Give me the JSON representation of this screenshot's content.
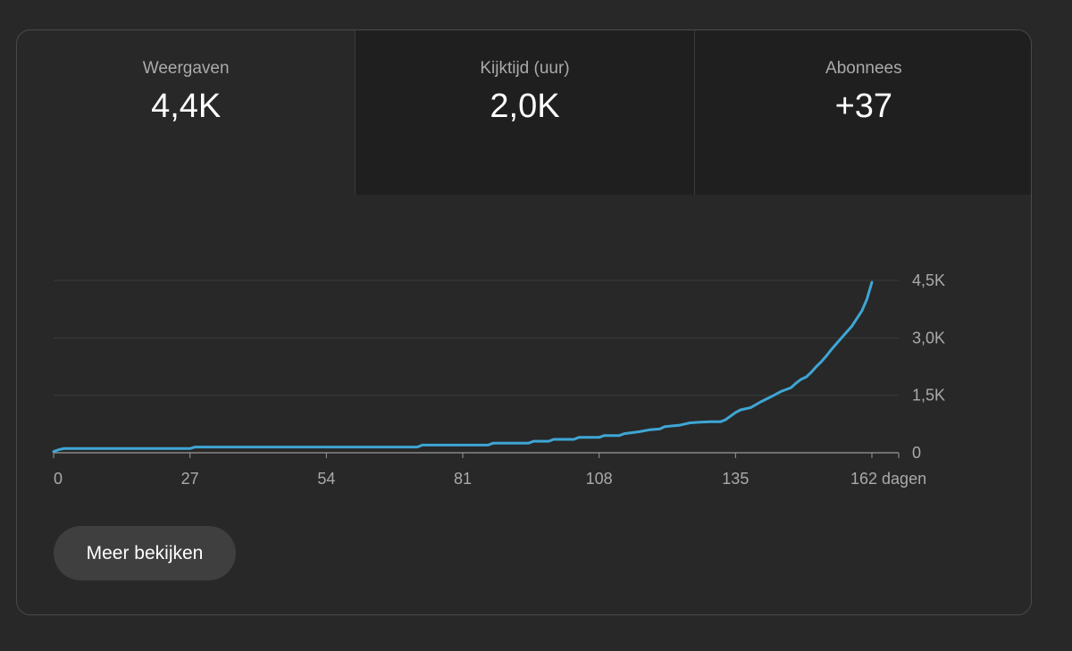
{
  "tabs": [
    {
      "label": "Weergaven",
      "value": "4,4K"
    },
    {
      "label": "Kijktijd (uur)",
      "value": "2,0K"
    },
    {
      "label": "Abonnees",
      "value": "+37"
    }
  ],
  "more_button": "Meer bekijken",
  "colors": {
    "line": "#3ea6d5",
    "grid": "#3a3a3a",
    "background": "#282828",
    "tab_inactive": "#1f1f1f"
  },
  "chart_data": {
    "type": "line",
    "x_tick_labels": [
      "0",
      "27",
      "54",
      "81",
      "108",
      "135",
      "162 dagen"
    ],
    "x_ticks": [
      0,
      27,
      54,
      81,
      108,
      135,
      162
    ],
    "y_tick_labels": [
      "4,5K",
      "3,0K",
      "1,5K",
      "0"
    ],
    "y_ticks": [
      4500,
      3000,
      1500,
      0
    ],
    "xlim": [
      0,
      162
    ],
    "ylim": [
      0,
      4500
    ],
    "grid": true,
    "y_axis_side": "right",
    "series": [
      {
        "values_x": [
          0,
          1,
          2,
          27,
          28,
          72,
          73,
          86,
          87,
          94,
          95,
          98,
          99,
          103,
          104,
          108,
          109,
          112,
          113,
          116,
          118,
          120,
          121,
          124,
          126,
          128,
          130,
          132,
          133,
          135,
          136,
          138,
          140,
          142,
          144,
          146,
          147,
          148,
          149,
          150,
          151,
          152,
          153,
          154,
          155,
          156,
          157,
          158,
          159,
          160,
          161,
          162
        ],
        "values_y": [
          30,
          80,
          110,
          110,
          150,
          150,
          200,
          200,
          250,
          250,
          300,
          300,
          350,
          350,
          400,
          400,
          450,
          450,
          500,
          550,
          600,
          620,
          680,
          720,
          780,
          800,
          810,
          810,
          860,
          1050,
          1120,
          1180,
          1330,
          1460,
          1600,
          1700,
          1820,
          1920,
          1980,
          2100,
          2250,
          2380,
          2530,
          2700,
          2850,
          3000,
          3150,
          3300,
          3500,
          3700,
          4000,
          4450
        ]
      }
    ]
  }
}
